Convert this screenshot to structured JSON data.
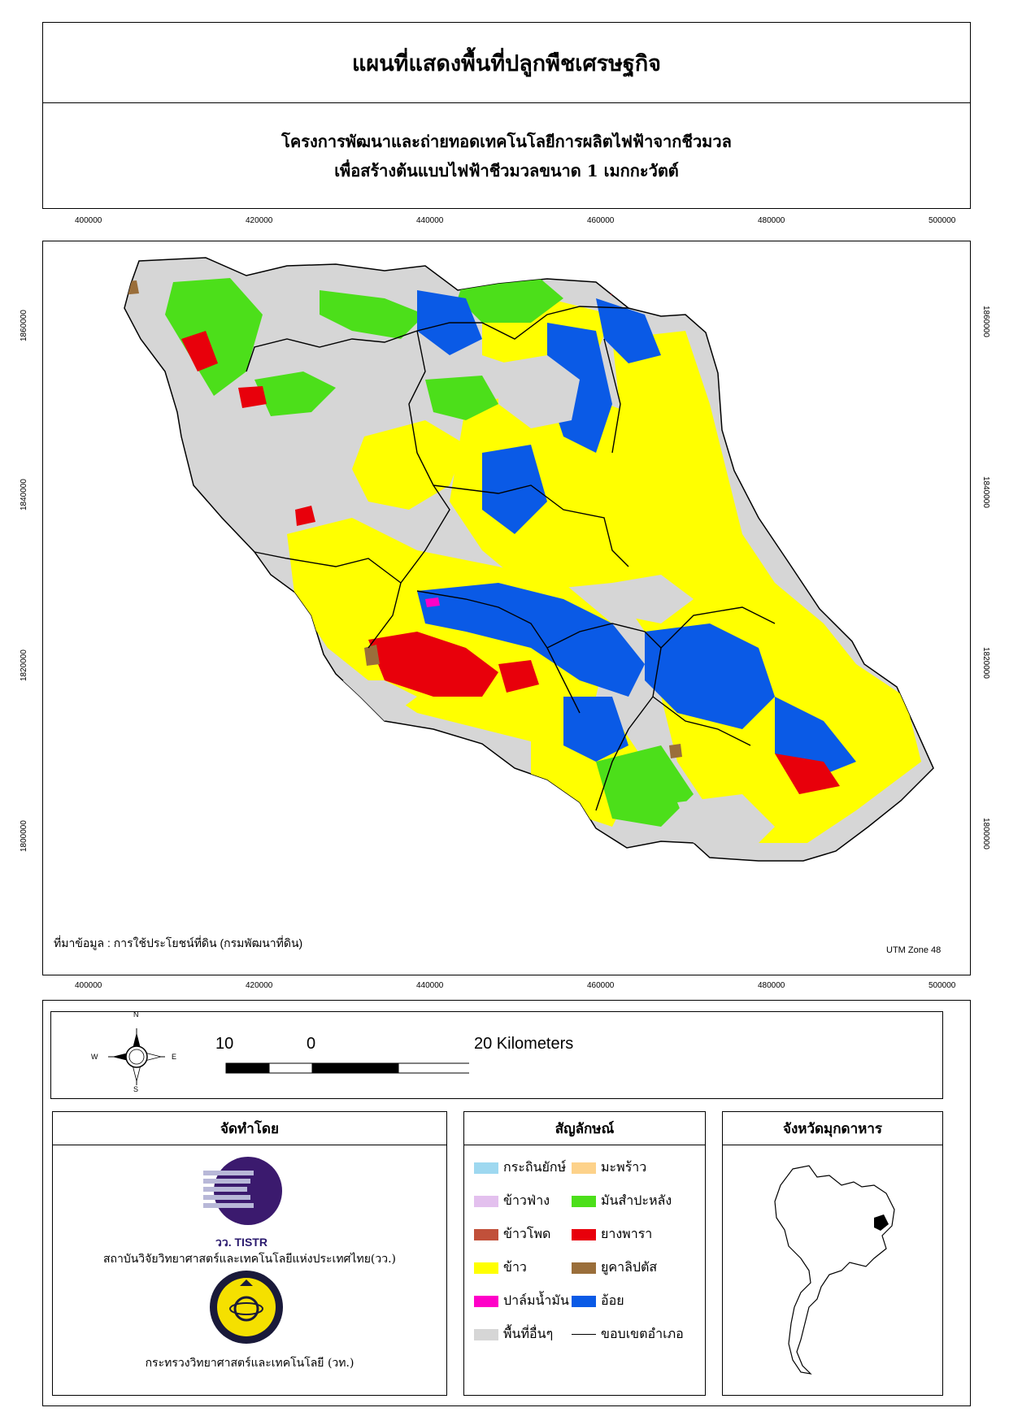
{
  "title": "แผนที่แสดงพื้นที่ปลูกพืชเศรษฐกิจ",
  "subtitle": {
    "line1": "โครงการพัฒนาและถ่ายทอดเทคโนโลยีการผลิตไฟฟ้าจากชีวมวล",
    "line2": "เพื่อสร้างต้นแบบไฟฟ้าชีวมวลขนาด 1 เมกกะวัตต์"
  },
  "grid": {
    "x_ticks": [
      "400000",
      "420000",
      "440000",
      "460000",
      "480000",
      "500000"
    ],
    "y_ticks": [
      "1860000",
      "1840000",
      "1820000",
      "1800000"
    ]
  },
  "source_note": "ที่มาข้อมูล : การใช้ประโยชน์ที่ดิน  (กรมพัฒนาที่ดิน)",
  "utm_note": "UTM Zone 48",
  "north_arrow": {
    "n": "N",
    "s": "S",
    "e": "E",
    "w": "W"
  },
  "scale_bar": {
    "left_label": "10",
    "zero_label": "0",
    "right_label": "20 Kilometers"
  },
  "org_panel": {
    "heading": "จัดทำโดย",
    "logo1_text": "วว. TISTR",
    "org1_name": "สถาบันวิจัยวิทยาศาสตร์และเทคโนโลยีแห่งประเทศไทย(วว.)",
    "org2_name": "กระทรวงวิทยาศาสตร์และเทคโนโลยี (วท.)"
  },
  "legend": {
    "heading": "สัญลักษณ์",
    "items": [
      {
        "label": "กระถินยักษ์",
        "color": "#9ed8f0"
      },
      {
        "label": "ข้าวฟ่าง",
        "color": "#e3c0ee"
      },
      {
        "label": "ข้าวโพด",
        "color": "#c1503a"
      },
      {
        "label": "ข้าว",
        "color": "#ffff00"
      },
      {
        "label": "ปาล์มน้ำมัน",
        "color": "#ff00c8"
      },
      {
        "label": "พื้นที่อื่นๆ",
        "color": "#d6d6d6"
      },
      {
        "label": "มะพร้าว",
        "color": "#fdd28a"
      },
      {
        "label": "มันสำปะหลัง",
        "color": "#4cdf1a"
      },
      {
        "label": "ยางพารา",
        "color": "#e8000b"
      },
      {
        "label": "ยูคาลิปตัส",
        "color": "#9a6e3a"
      },
      {
        "label": "อ้อย",
        "color": "#0a5ae6"
      },
      {
        "label": "ขอบเขตอำเภอ",
        "color": "#000000"
      }
    ]
  },
  "province_panel": {
    "heading": "จังหวัดมุกดาหาร"
  }
}
